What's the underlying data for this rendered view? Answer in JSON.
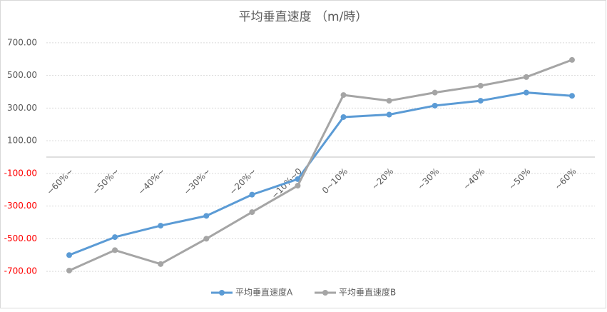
{
  "chart_data": {
    "type": "line",
    "title": "平均垂直速度 （m/時）",
    "categories": [
      "−60%~",
      "−50%~",
      "−40%~",
      "−30%~",
      "−20%~",
      "−10%~0",
      "0~10%",
      "~20%",
      "~30%",
      "~40%",
      "~50%",
      "~60%"
    ],
    "series": [
      {
        "name": "平均垂直速度A",
        "color": "#5b9bd5",
        "values": [
          -600,
          -490,
          -420,
          -360,
          -230,
          -135,
          245,
          260,
          315,
          345,
          395,
          375
        ]
      },
      {
        "name": "平均垂直速度B",
        "color": "#a5a5a5",
        "values": [
          -695,
          -570,
          -655,
          -500,
          -337,
          -175,
          380,
          345,
          395,
          437,
          490,
          595
        ]
      }
    ],
    "ylim": [
      -800,
      800
    ],
    "yticks": [
      {
        "value": 700,
        "label": "700.00"
      },
      {
        "value": 500,
        "label": "500.00"
      },
      {
        "value": 300,
        "label": "300.00"
      },
      {
        "value": 100,
        "label": "100.00"
      },
      {
        "value": -100,
        "label": "-100.00"
      },
      {
        "value": -300,
        "label": "-300.00"
      },
      {
        "value": -500,
        "label": "-500.00"
      },
      {
        "value": -700,
        "label": "-700.00"
      }
    ],
    "grid": true,
    "negative_tick_color": "#ff0000",
    "legend": "bottom"
  }
}
